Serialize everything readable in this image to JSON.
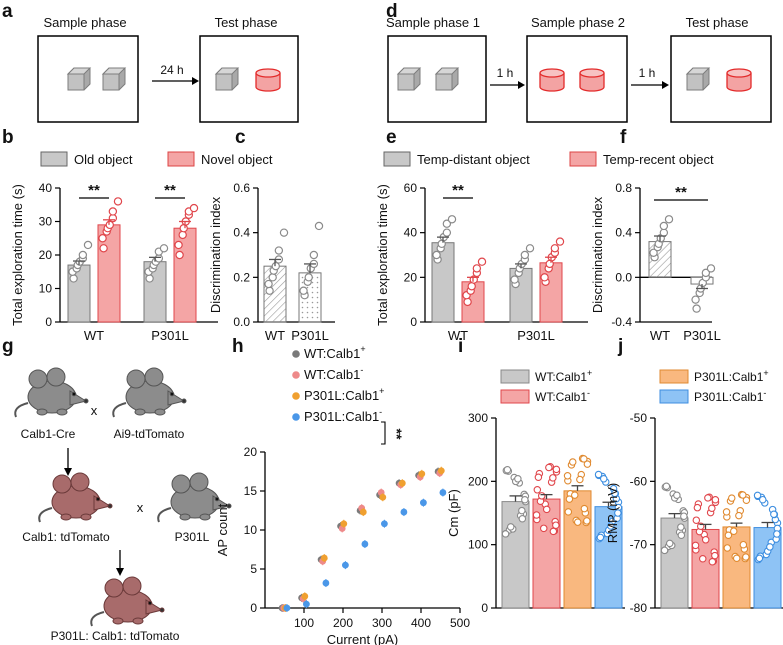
{
  "panel_letters": {
    "a": "a",
    "b": "b",
    "c": "c",
    "d": "d",
    "e": "e",
    "f": "f",
    "g": "g",
    "h": "h",
    "i": "i",
    "j": "j"
  },
  "panel_a": {
    "box1_title": "Sample phase",
    "box2_title": "Test phase",
    "arrow_label": "24 h"
  },
  "panel_d": {
    "box1_title": "Sample phase 1",
    "box2_title": "Sample phase 2",
    "box3_title": "Test phase",
    "arrow1_label": "1 h",
    "arrow2_label": "1 h"
  },
  "legend_b": {
    "old": "Old object",
    "novel": "Novel object"
  },
  "legend_e": {
    "distant": "Temp-distant object",
    "recent": "Temp-recent object"
  },
  "panel_g": {
    "mouse1": "Calb1-Cre",
    "cross": "x",
    "mouse2": "Ai9-tdTomato",
    "offspring": "Calb1: tdTomato",
    "mouse3": "P301L",
    "final": "P301L: Calb1: tdTomato"
  },
  "colors": {
    "gray": "#c8c8c8",
    "red": "#f4a5a5",
    "orange": "#f9b87f",
    "blue": "#8ec3f5",
    "dark_gray": "#7a7a7a",
    "salmon": "#ee8a8a",
    "orange_dot": "#f0a030",
    "blue_dot": "#4a97e8"
  },
  "chart_data": [
    {
      "panel": "b",
      "type": "bar",
      "ylabel": "Total exploration time (s)",
      "ylim": [
        0,
        40
      ],
      "yticks": [
        "0",
        "10",
        "20",
        "30",
        "40"
      ],
      "categories": [
        "WT",
        "P301L"
      ],
      "series": [
        {
          "name": "Old object",
          "values": [
            17,
            18
          ],
          "errors": [
            1.2,
            1.3
          ]
        },
        {
          "name": "Novel object",
          "values": [
            29,
            28
          ],
          "errors": [
            1.5,
            2.0
          ]
        }
      ],
      "points": [
        [
          13,
          15,
          16,
          17,
          18,
          19,
          20,
          23
        ],
        [
          22,
          25,
          27,
          28,
          29,
          31,
          33,
          36
        ],
        [
          13,
          15,
          16,
          17,
          18,
          19,
          21,
          22
        ],
        [
          20,
          23,
          26,
          28,
          30,
          32,
          33,
          34
        ]
      ],
      "significance": [
        "**",
        "**"
      ]
    },
    {
      "panel": "c",
      "type": "bar",
      "ylabel": "Discrimination index",
      "ylim": [
        0,
        0.6
      ],
      "yticks": [
        "0.0",
        "0.2",
        "0.4",
        "0.6"
      ],
      "categories": [
        "WT",
        "P301L"
      ],
      "values": [
        0.25,
        0.22
      ],
      "errors": [
        0.03,
        0.04
      ],
      "points": [
        [
          0.14,
          0.17,
          0.2,
          0.23,
          0.25,
          0.28,
          0.32,
          0.4
        ],
        [
          0.12,
          0.14,
          0.18,
          0.2,
          0.24,
          0.26,
          0.3,
          0.43
        ]
      ]
    },
    {
      "panel": "e",
      "type": "bar",
      "ylabel": "Total exploration time (s)",
      "ylim": [
        0,
        60
      ],
      "yticks": [
        "0",
        "20",
        "40",
        "60"
      ],
      "categories": [
        "WT",
        "P301L"
      ],
      "series": [
        {
          "name": "Temp-distant object",
          "values": [
            35.5,
            24
          ],
          "errors": [
            2.5,
            2.0
          ]
        },
        {
          "name": "Temp-recent object",
          "values": [
            18,
            26.5
          ],
          "errors": [
            2.0,
            2.5
          ]
        }
      ],
      "points": [
        [
          28,
          30,
          33,
          35,
          38,
          40,
          44,
          46
        ],
        [
          9,
          12,
          14,
          16,
          19,
          22,
          24,
          27
        ],
        [
          17,
          19,
          22,
          24,
          26,
          28,
          30,
          33
        ],
        [
          18,
          20,
          24,
          26,
          29,
          31,
          33,
          36
        ]
      ],
      "significance": [
        "**"
      ]
    },
    {
      "panel": "f",
      "type": "bar",
      "ylabel": "Discrimination index",
      "ylim": [
        -0.4,
        0.8
      ],
      "yticks": [
        "-0.4",
        "0.0",
        "0.4",
        "0.8"
      ],
      "categories": [
        "WT",
        "P301L"
      ],
      "values": [
        0.32,
        -0.06
      ],
      "errors": [
        0.05,
        0.04
      ],
      "points": [
        [
          0.18,
          0.22,
          0.27,
          0.3,
          0.35,
          0.4,
          0.46,
          0.52
        ],
        [
          -0.28,
          -0.2,
          -0.14,
          -0.1,
          -0.05,
          0.0,
          0.04,
          0.08
        ]
      ],
      "significance": [
        "**"
      ]
    },
    {
      "panel": "h",
      "type": "line",
      "xlabel": "Current (pA)",
      "ylabel": "AP count",
      "xlim": [
        0,
        500
      ],
      "ylim": [
        0,
        20
      ],
      "xticks": [
        "100",
        "200",
        "300",
        "400",
        "500"
      ],
      "yticks": [
        "0",
        "5",
        "10",
        "15",
        "20"
      ],
      "x": [
        50,
        100,
        150,
        200,
        250,
        300,
        350,
        400,
        450
      ],
      "series": [
        {
          "name": "WT:Calb1",
          "sup": "+",
          "values": [
            0,
            1.3,
            6.2,
            10.5,
            12.5,
            14.5,
            16,
            17,
            17.5
          ]
        },
        {
          "name": "WT:Calb1",
          "sup": "-",
          "values": [
            0,
            1.2,
            6.0,
            10.2,
            12.8,
            14.8,
            15.8,
            16.8,
            17.3
          ]
        },
        {
          "name": "P301L:Calb1",
          "sup": "+",
          "values": [
            0,
            1.5,
            6.4,
            10.8,
            12.3,
            14.2,
            16,
            17.2,
            17.6
          ]
        },
        {
          "name": "P301L:Calb1",
          "sup": "-",
          "values": [
            0,
            0.5,
            3.2,
            5.5,
            8.2,
            10.8,
            12.3,
            13.5,
            14.8
          ]
        }
      ],
      "significance": "**"
    },
    {
      "panel": "i",
      "type": "bar",
      "ylabel": "Cm (pF)",
      "ylim": [
        0,
        300
      ],
      "yticks": [
        "0",
        "100",
        "200",
        "300"
      ],
      "categories": [
        "WT:Calb1+",
        "WT:Calb1-",
        "P301L:Calb1+",
        "P301L:Calb1-"
      ],
      "values": [
        168,
        172,
        185,
        160
      ],
      "errors": [
        9,
        7,
        8,
        7
      ],
      "legend": [
        {
          "name": "WT:Calb1",
          "sup": "+"
        },
        {
          "name": "WT:Calb1",
          "sup": "-"
        }
      ]
    },
    {
      "panel": "j",
      "type": "bar",
      "ylabel": "RMP (mV)",
      "ylim": [
        -80,
        -50
      ],
      "yticks": [
        "-50",
        "-60",
        "-70",
        "-80"
      ],
      "categories": [
        "WT:Calb1+",
        "WT:Calb1-",
        "P301L:Calb1+",
        "P301L:Calb1-"
      ],
      "values": [
        -65.8,
        -67.6,
        -67.2,
        -67.3
      ],
      "errors": [
        0.7,
        0.8,
        0.6,
        0.8
      ],
      "legend": [
        {
          "name": "P301L:Calb1",
          "sup": "+"
        },
        {
          "name": "P301L:Calb1",
          "sup": "-"
        }
      ]
    }
  ]
}
